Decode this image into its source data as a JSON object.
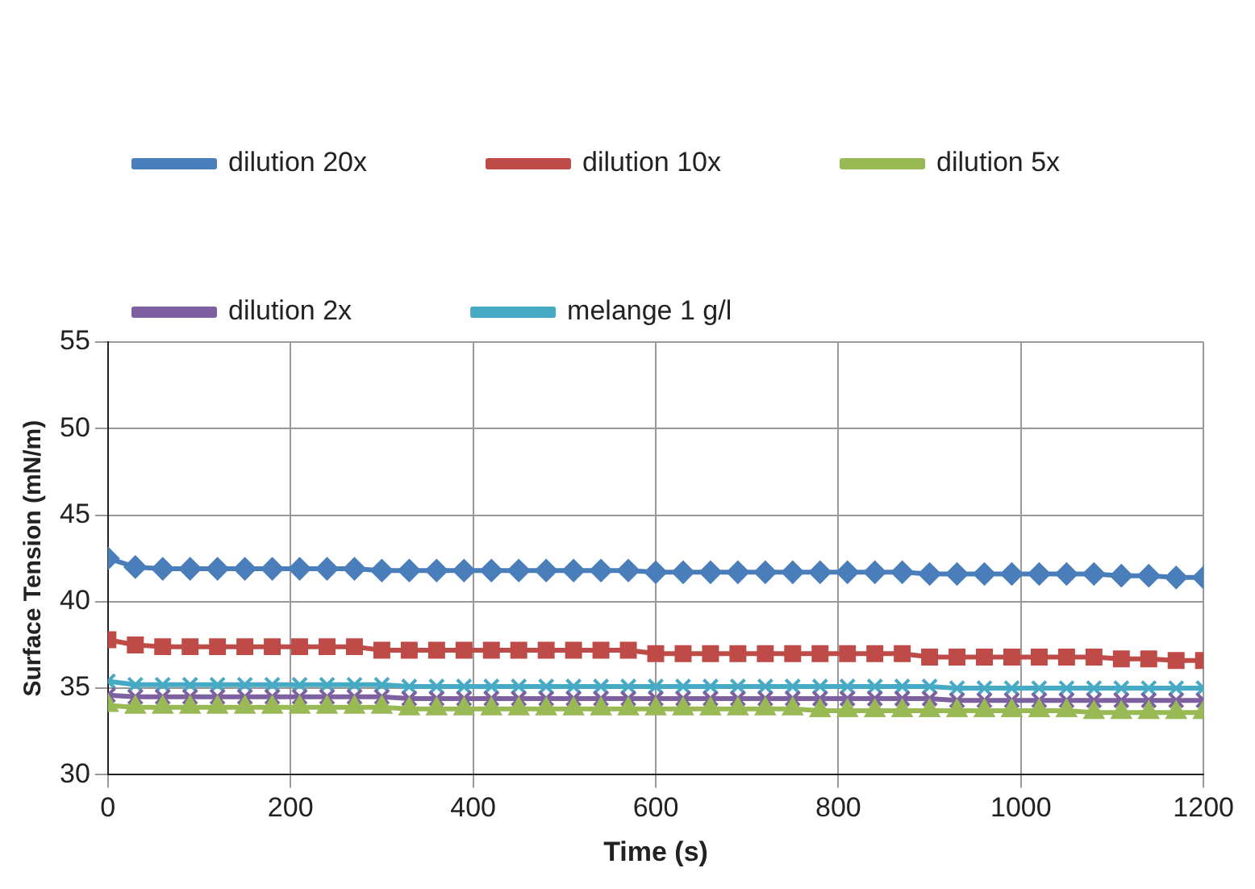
{
  "chart_data": {
    "type": "line",
    "xlabel": "Time (s)",
    "ylabel": "Surface Tension (mN/m)",
    "x": [
      0,
      30,
      60,
      90,
      120,
      150,
      180,
      210,
      240,
      270,
      300,
      330,
      360,
      390,
      420,
      450,
      480,
      510,
      540,
      570,
      600,
      630,
      660,
      690,
      720,
      750,
      780,
      810,
      840,
      870,
      900,
      930,
      960,
      990,
      1020,
      1050,
      1080,
      1110,
      1140,
      1170,
      1200
    ],
    "series": [
      {
        "name": "dilution 20x",
        "color": "#4a7ebb",
        "marker": "diamond",
        "values": [
          42.5,
          42.0,
          41.9,
          41.9,
          41.9,
          41.9,
          41.9,
          41.9,
          41.9,
          41.9,
          41.8,
          41.8,
          41.8,
          41.8,
          41.8,
          41.8,
          41.8,
          41.8,
          41.8,
          41.8,
          41.7,
          41.7,
          41.7,
          41.7,
          41.7,
          41.7,
          41.7,
          41.7,
          41.7,
          41.7,
          41.6,
          41.6,
          41.6,
          41.6,
          41.6,
          41.6,
          41.6,
          41.5,
          41.5,
          41.4,
          41.4
        ]
      },
      {
        "name": "dilution 10x",
        "color": "#be4b48",
        "marker": "square",
        "values": [
          37.8,
          37.5,
          37.4,
          37.4,
          37.4,
          37.4,
          37.4,
          37.4,
          37.4,
          37.4,
          37.2,
          37.2,
          37.2,
          37.2,
          37.2,
          37.2,
          37.2,
          37.2,
          37.2,
          37.2,
          37.0,
          37.0,
          37.0,
          37.0,
          37.0,
          37.0,
          37.0,
          37.0,
          37.0,
          37.0,
          36.8,
          36.8,
          36.8,
          36.8,
          36.8,
          36.8,
          36.8,
          36.7,
          36.7,
          36.6,
          36.6
        ]
      },
      {
        "name": "dilution 5x",
        "color": "#98b954",
        "marker": "triangle",
        "values": [
          34.0,
          33.9,
          33.9,
          33.9,
          33.9,
          33.9,
          33.9,
          33.9,
          33.9,
          33.9,
          33.9,
          33.8,
          33.8,
          33.8,
          33.8,
          33.8,
          33.8,
          33.8,
          33.8,
          33.8,
          33.8,
          33.8,
          33.8,
          33.8,
          33.8,
          33.8,
          33.7,
          33.7,
          33.7,
          33.7,
          33.7,
          33.7,
          33.7,
          33.7,
          33.7,
          33.7,
          33.6,
          33.6,
          33.6,
          33.6,
          33.6
        ]
      },
      {
        "name": "dilution 2x",
        "color": "#7d60a0",
        "marker": "cross",
        "values": [
          34.6,
          34.5,
          34.5,
          34.5,
          34.5,
          34.5,
          34.5,
          34.5,
          34.5,
          34.5,
          34.5,
          34.4,
          34.4,
          34.4,
          34.4,
          34.4,
          34.4,
          34.4,
          34.4,
          34.4,
          34.4,
          34.4,
          34.4,
          34.4,
          34.4,
          34.4,
          34.4,
          34.4,
          34.4,
          34.4,
          34.4,
          34.3,
          34.3,
          34.3,
          34.3,
          34.3,
          34.3,
          34.3,
          34.3,
          34.3,
          34.3
        ]
      },
      {
        "name": "melange 1 g/l",
        "color": "#46aac5",
        "marker": "cross",
        "values": [
          35.4,
          35.2,
          35.2,
          35.2,
          35.2,
          35.2,
          35.2,
          35.2,
          35.2,
          35.2,
          35.2,
          35.1,
          35.1,
          35.1,
          35.1,
          35.1,
          35.1,
          35.1,
          35.1,
          35.1,
          35.1,
          35.1,
          35.1,
          35.1,
          35.1,
          35.1,
          35.1,
          35.1,
          35.1,
          35.1,
          35.1,
          35.0,
          35.0,
          35.0,
          35.0,
          35.0,
          35.0,
          35.0,
          35.0,
          35.0,
          35.0
        ]
      }
    ],
    "xlim": [
      0,
      1200
    ],
    "xticks": [
      0,
      200,
      400,
      600,
      800,
      1000,
      1200
    ],
    "ylim": [
      30,
      55
    ],
    "yticks": [
      30,
      35,
      40,
      45,
      50,
      55
    ],
    "grid": true,
    "legend": "top",
    "line_style": "solid"
  }
}
